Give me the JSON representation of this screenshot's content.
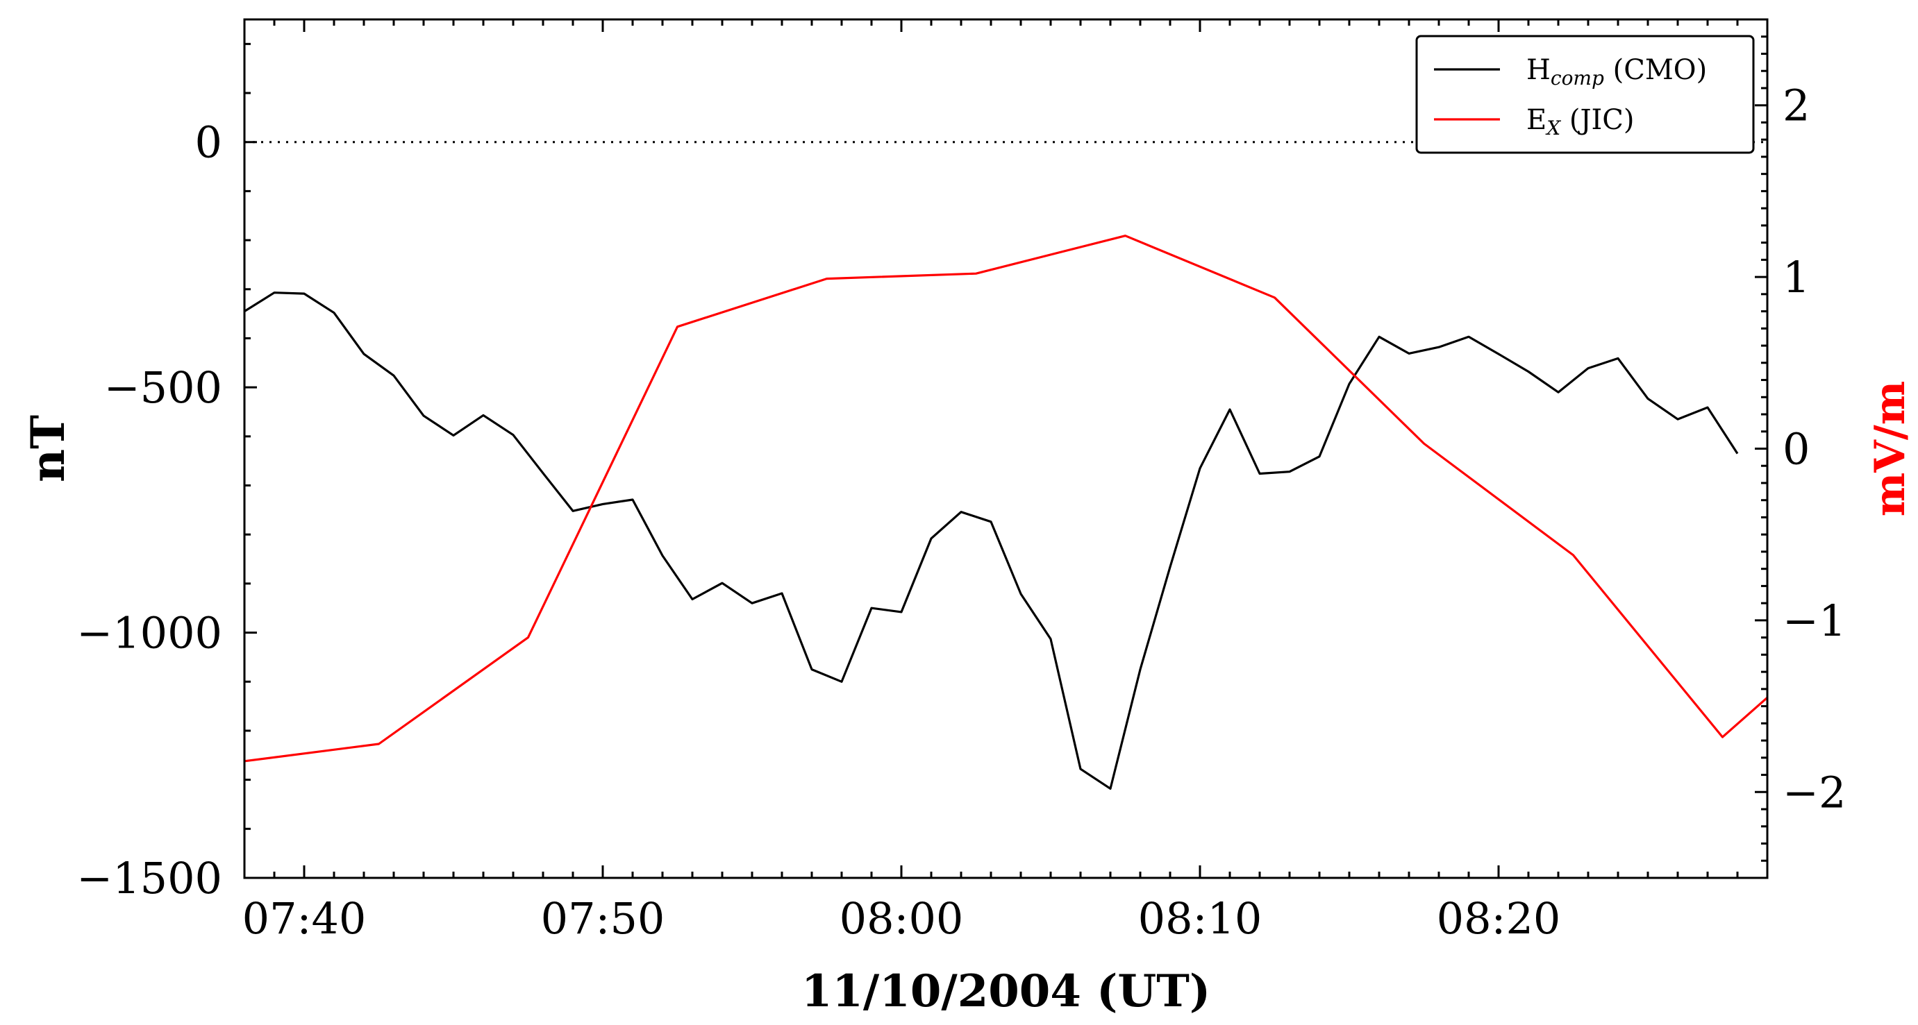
{
  "chart_data": {
    "type": "line",
    "xlabel": "11/10/2004 (UT)",
    "ylabel_left": "nT",
    "ylabel_right": "mV/m",
    "x_tick_labels": [
      "07:40",
      "07:50",
      "08:00",
      "08:10",
      "08:20"
    ],
    "x_tick_minutes": [
      460,
      470,
      480,
      490,
      500
    ],
    "xlim_minutes": [
      458,
      509
    ],
    "ylim_left": [
      -1500,
      250
    ],
    "ylim_right": [
      -2.5,
      2.5
    ],
    "left_ticks": [
      0,
      -500,
      -1000,
      -1500
    ],
    "left_tick_labels": [
      "0",
      "−500",
      "−1000",
      "−1500"
    ],
    "right_ticks": [
      2,
      1,
      0,
      -1,
      -2
    ],
    "right_tick_labels": [
      "2",
      "1",
      "0",
      "−1",
      "−2"
    ],
    "zero_reference_line": "dotted",
    "legend_position": "top-right",
    "series": [
      {
        "name": "H",
        "name_subscript": "comp",
        "name_suffix": " (CMO)",
        "axis": "left",
        "color": "#000000",
        "x_minutes": [
          458,
          459,
          460,
          461,
          462,
          463,
          464,
          465,
          466,
          467,
          468,
          469,
          470,
          471,
          472,
          473,
          474,
          475,
          476,
          477,
          478,
          479,
          480,
          481,
          482,
          483,
          484,
          485,
          486,
          487,
          488,
          489,
          490,
          491,
          492,
          493,
          494,
          495,
          496,
          497,
          498,
          499,
          500,
          501,
          502,
          503,
          504,
          505,
          506,
          507,
          508
        ],
        "values": [
          -345,
          -307,
          -309,
          -348,
          -432,
          -476,
          -558,
          -598,
          -557,
          -597,
          -675,
          -752,
          -738,
          -729,
          -843,
          -932,
          -899,
          -940,
          -920,
          -1075,
          -1100,
          -950,
          -958,
          -808,
          -754,
          -774,
          -921,
          -1013,
          -1278,
          -1318,
          -1075,
          -866,
          -665,
          -545,
          -676,
          -672,
          -641,
          -493,
          -397,
          -431,
          -418,
          -397,
          -432,
          -468,
          -510,
          -461,
          -441,
          -523,
          -565,
          -541,
          -635
        ]
      },
      {
        "name": "E",
        "name_subscript": "X",
        "name_suffix": " (JIC)",
        "axis": "right",
        "color": "#ff0000",
        "x_minutes": [
          458,
          462.5,
          467.5,
          472.5,
          477.5,
          482.5,
          487.5,
          492.5,
          497.5,
          502.5,
          507.5,
          509
        ],
        "values": [
          -1.82,
          -1.72,
          -1.1,
          0.71,
          0.99,
          1.02,
          1.24,
          0.88,
          0.03,
          -0.62,
          -1.68,
          -1.45
        ]
      }
    ]
  }
}
